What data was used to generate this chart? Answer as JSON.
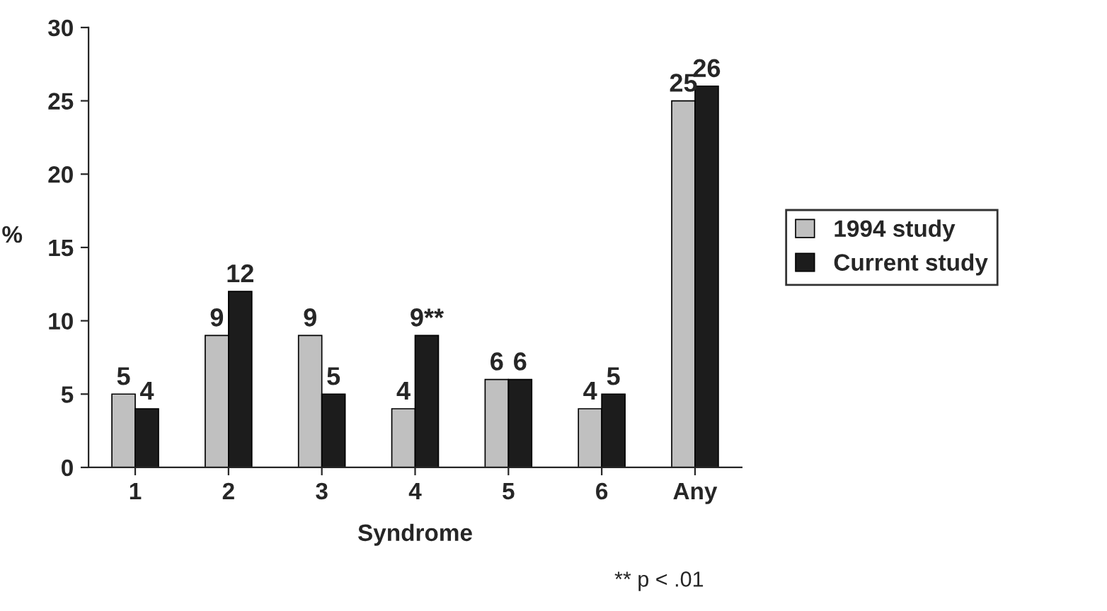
{
  "chart_data": {
    "type": "bar",
    "xlabel": "Syndrome",
    "ylabel": "%",
    "categories": [
      "1",
      "2",
      "3",
      "4",
      "5",
      "6",
      "Any"
    ],
    "series": [
      {
        "name": "1994 study",
        "color": "#c0c0c0",
        "values": [
          5,
          9,
          9,
          4,
          6,
          4,
          25
        ],
        "value_labels": [
          "5",
          "9",
          "9",
          "4",
          "6",
          "4",
          "25"
        ]
      },
      {
        "name": "Current study",
        "color": "#1c1c1c",
        "values": [
          4,
          12,
          5,
          9,
          6,
          5,
          26
        ],
        "value_labels": [
          "4",
          "12",
          "5",
          "9**",
          "6",
          "5",
          "26"
        ]
      }
    ],
    "ylim": [
      0,
      30
    ],
    "yticks": [
      0,
      5,
      10,
      15,
      20,
      25,
      30
    ],
    "grid": false,
    "legend": "right",
    "annotations": [
      "** p < .01"
    ]
  }
}
